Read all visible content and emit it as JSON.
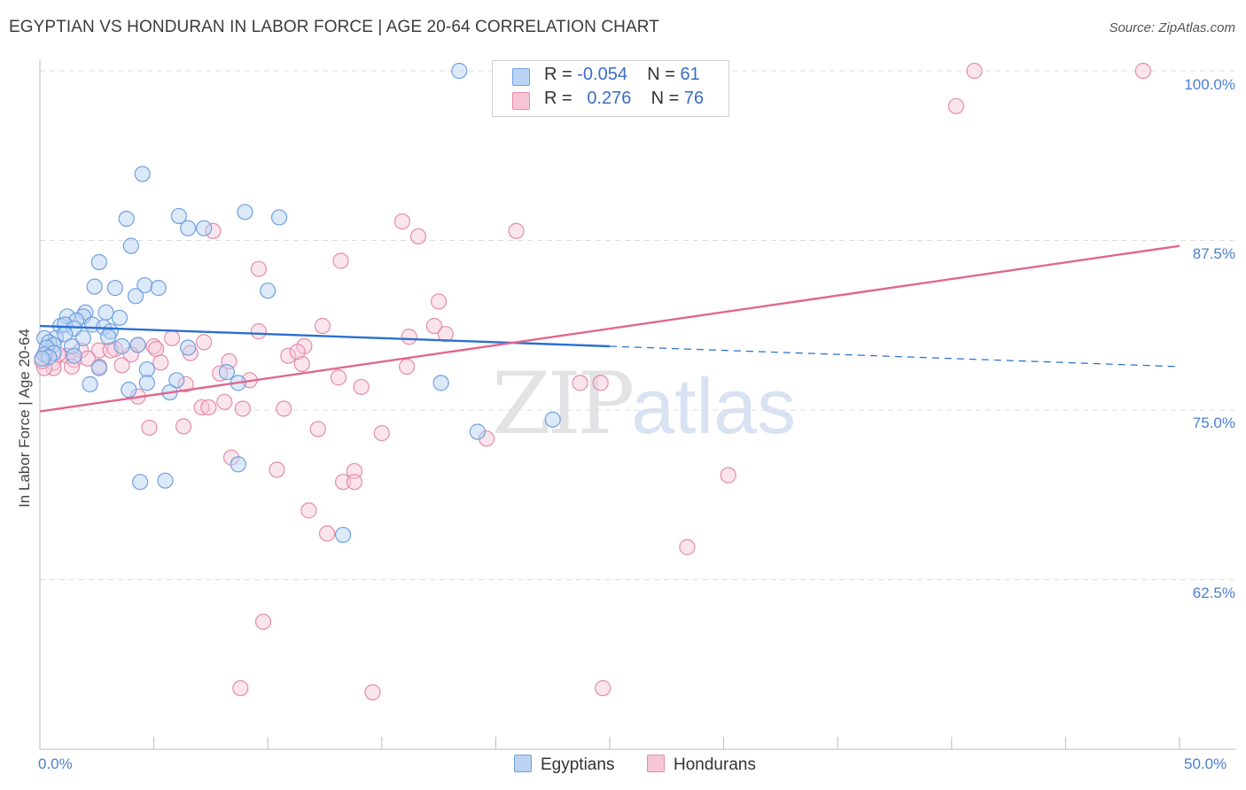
{
  "header": {
    "title": "EGYPTIAN VS HONDURAN IN LABOR FORCE | AGE 20-64 CORRELATION CHART",
    "source": "Source: ZipAtlas.com"
  },
  "legend_top": {
    "rows": [
      {
        "r_label": "R =",
        "r_value": "-0.054",
        "n_label": "N =",
        "n_value": "61"
      },
      {
        "r_label": "R =",
        "r_value": "0.276",
        "n_label": "N =",
        "n_value": "76"
      }
    ]
  },
  "legend_bottom": {
    "egyptians": "Egyptians",
    "hondurans": "Hondurans"
  },
  "watermark": {
    "zip": "ZIP",
    "atlas": "atlas"
  },
  "axes": {
    "y_label": "In Labor Force | Age 20-64",
    "y_ticks": [
      "100.0%",
      "87.5%",
      "75.0%",
      "62.5%"
    ],
    "x_ticks": [
      "0.0%",
      "50.0%"
    ]
  },
  "colors": {
    "egyptians": "#6fa0e0",
    "egyptians_fill": "#bad3f3",
    "egyptians_line": "#2a6fcf",
    "hondurans": "#e58bab",
    "hondurans_fill": "#f7c6d6",
    "hondurans_line": "#e0678f"
  },
  "chart_data": {
    "type": "scatter",
    "xlabel": "",
    "ylabel": "In Labor Force | Age 20-64",
    "xlim": [
      0,
      50
    ],
    "ylim": [
      50,
      100
    ],
    "grid": true,
    "legend_placement": "top-center",
    "series": [
      {
        "name": "Egyptians",
        "R": -0.054,
        "N": 61,
        "trend": {
          "x": [
            0,
            25
          ],
          "y": [
            81.2,
            79.7
          ],
          "dashed_to": [
            50,
            78.2
          ]
        },
        "points": [
          [
            18.4,
            100
          ],
          [
            4.5,
            92.4
          ],
          [
            3.8,
            89.1
          ],
          [
            6.1,
            89.3
          ],
          [
            7.2,
            88.4
          ],
          [
            6.5,
            88.4
          ],
          [
            9,
            89.6
          ],
          [
            10.5,
            89.2
          ],
          [
            4,
            87.1
          ],
          [
            2.6,
            85.9
          ],
          [
            2.4,
            84.1
          ],
          [
            3.3,
            84
          ],
          [
            4.6,
            84.2
          ],
          [
            5.2,
            84
          ],
          [
            4.2,
            83.4
          ],
          [
            10,
            83.8
          ],
          [
            2,
            82.2
          ],
          [
            2.9,
            82.2
          ],
          [
            3.5,
            81.8
          ],
          [
            1.9,
            81.9
          ],
          [
            1.2,
            81.9
          ],
          [
            1.6,
            81.6
          ],
          [
            0.9,
            81.2
          ],
          [
            1.1,
            81.3
          ],
          [
            2.3,
            81.3
          ],
          [
            1.5,
            81
          ],
          [
            2.8,
            81.1
          ],
          [
            3.1,
            80.8
          ],
          [
            0.7,
            80.3
          ],
          [
            1.1,
            80.6
          ],
          [
            1.9,
            80.3
          ],
          [
            3,
            80.4
          ],
          [
            0.2,
            80.3
          ],
          [
            0.4,
            80
          ],
          [
            0.6,
            79.8
          ],
          [
            1.4,
            79.7
          ],
          [
            0.3,
            79.6
          ],
          [
            0.6,
            79.2
          ],
          [
            0.2,
            79.1
          ],
          [
            0.4,
            78.9
          ],
          [
            1.5,
            79
          ],
          [
            3.6,
            79.7
          ],
          [
            4.3,
            79.8
          ],
          [
            6.5,
            79.6
          ],
          [
            2.6,
            78.1
          ],
          [
            4.7,
            78
          ],
          [
            8.2,
            77.8
          ],
          [
            4.7,
            77
          ],
          [
            6,
            77.2
          ],
          [
            2.2,
            76.9
          ],
          [
            8.7,
            77
          ],
          [
            3.9,
            76.5
          ],
          [
            5.7,
            76.3
          ],
          [
            17.6,
            77
          ],
          [
            22.5,
            74.3
          ],
          [
            19.2,
            73.4
          ],
          [
            8.7,
            71
          ],
          [
            4.4,
            69.7
          ],
          [
            5.5,
            69.8
          ],
          [
            13.3,
            65.8
          ],
          [
            0.1,
            78.8
          ]
        ]
      },
      {
        "name": "Hondurans",
        "R": 0.276,
        "N": 76,
        "trend": {
          "x": [
            0,
            50
          ],
          "y": [
            74.9,
            87.1
          ]
        },
        "points": [
          [
            41,
            100
          ],
          [
            48.4,
            100
          ],
          [
            40.2,
            97.4
          ],
          [
            15.9,
            88.9
          ],
          [
            7.6,
            88.2
          ],
          [
            20.9,
            88.2
          ],
          [
            16.6,
            87.8
          ],
          [
            13.2,
            86
          ],
          [
            9.6,
            85.4
          ],
          [
            17.5,
            83
          ],
          [
            12.4,
            81.2
          ],
          [
            17.3,
            81.2
          ],
          [
            9.6,
            80.8
          ],
          [
            17.8,
            80.6
          ],
          [
            16.2,
            80.4
          ],
          [
            5.8,
            80.3
          ],
          [
            7.2,
            80
          ],
          [
            11.6,
            79.7
          ],
          [
            4.3,
            79.8
          ],
          [
            5,
            79.7
          ],
          [
            5.1,
            79.5
          ],
          [
            3.3,
            79.5
          ],
          [
            1.8,
            79.4
          ],
          [
            2.6,
            79.4
          ],
          [
            4,
            79.1
          ],
          [
            10.9,
            79
          ],
          [
            1.2,
            79
          ],
          [
            1.5,
            78.7
          ],
          [
            8.3,
            78.6
          ],
          [
            5.3,
            78.5
          ],
          [
            11.5,
            78.4
          ],
          [
            0.6,
            78.5
          ],
          [
            0.6,
            78.1
          ],
          [
            0.2,
            78.1
          ],
          [
            1.4,
            78.2
          ],
          [
            2.6,
            78.2
          ],
          [
            3.6,
            78.3
          ],
          [
            16.1,
            78.2
          ],
          [
            7.9,
            77.7
          ],
          [
            13.1,
            77.4
          ],
          [
            9.2,
            77.2
          ],
          [
            6.4,
            76.9
          ],
          [
            14.1,
            76.7
          ],
          [
            23.7,
            77
          ],
          [
            24.6,
            77
          ],
          [
            4.3,
            76
          ],
          [
            8.1,
            75.6
          ],
          [
            7.1,
            75.2
          ],
          [
            7.4,
            75.2
          ],
          [
            8.9,
            75.1
          ],
          [
            10.7,
            75.1
          ],
          [
            6.3,
            73.8
          ],
          [
            4.8,
            73.7
          ],
          [
            12.2,
            73.6
          ],
          [
            15,
            73.3
          ],
          [
            19.6,
            72.9
          ],
          [
            8.4,
            71.5
          ],
          [
            10.4,
            70.6
          ],
          [
            13.8,
            70.5
          ],
          [
            13.3,
            69.7
          ],
          [
            13.8,
            69.7
          ],
          [
            30.2,
            70.2
          ],
          [
            11.8,
            67.6
          ],
          [
            12.6,
            65.9
          ],
          [
            28.4,
            64.9
          ],
          [
            9.8,
            59.4
          ],
          [
            8.8,
            54.5
          ],
          [
            14.6,
            54.2
          ],
          [
            24.7,
            54.5
          ],
          [
            0.1,
            78.6
          ],
          [
            0.3,
            79.2
          ],
          [
            0.8,
            79.1
          ],
          [
            2.1,
            78.8
          ],
          [
            3.1,
            79.4
          ],
          [
            6.6,
            79.2
          ],
          [
            11.3,
            79.3
          ]
        ]
      }
    ]
  }
}
